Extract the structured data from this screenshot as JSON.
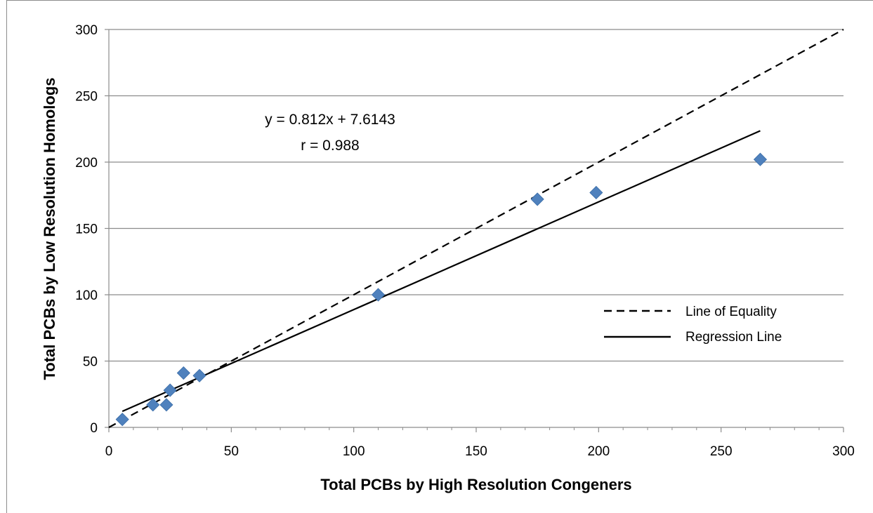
{
  "chart_data": {
    "type": "scatter",
    "title": "",
    "xlabel": "Total PCBs by High Resolution Congeners",
    "ylabel": "Total PCBs by Low Resolution Homologs",
    "xlim": [
      0,
      300
    ],
    "ylim": [
      0,
      300
    ],
    "xticks": [
      0,
      50,
      100,
      150,
      200,
      250,
      300
    ],
    "yticks": [
      0,
      50,
      100,
      150,
      200,
      250,
      300
    ],
    "grid": "horizontal",
    "legend_position": "right",
    "marker": "diamond",
    "marker_color": "#4f81bd",
    "points": [
      {
        "x": 5.5,
        "y": 6
      },
      {
        "x": 18,
        "y": 17
      },
      {
        "x": 23.5,
        "y": 17
      },
      {
        "x": 25,
        "y": 28
      },
      {
        "x": 30.5,
        "y": 41
      },
      {
        "x": 37,
        "y": 39
      },
      {
        "x": 110,
        "y": 100
      },
      {
        "x": 175,
        "y": 172
      },
      {
        "x": 199,
        "y": 177
      },
      {
        "x": 266,
        "y": 202
      }
    ],
    "lines": [
      {
        "name": "Line of Equality",
        "style": "dashed",
        "x": [
          0,
          300
        ],
        "y": [
          0,
          300
        ]
      },
      {
        "name": "Regression Line",
        "style": "solid",
        "x": [
          5.5,
          266
        ],
        "y": [
          12.08,
          223.6
        ]
      }
    ],
    "annotations": [
      "y = 0.812x + 7.6143",
      "r = 0.988"
    ]
  }
}
